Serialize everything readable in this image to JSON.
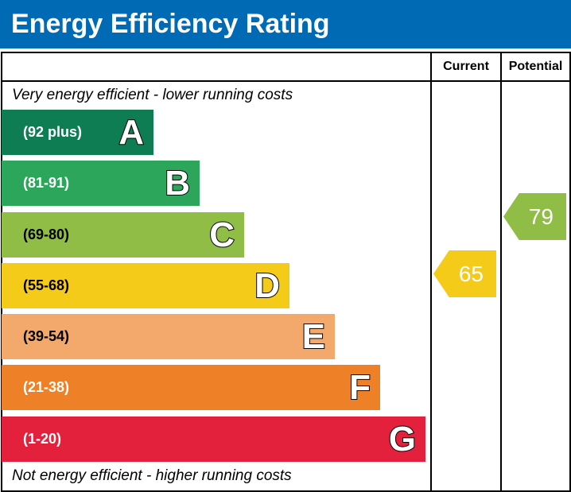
{
  "chart_data": {
    "type": "bar",
    "title": "Energy Efficiency Rating",
    "columns": [
      "Current",
      "Potential"
    ],
    "top_note": "Very energy efficient - lower running costs",
    "bottom_note": "Not energy efficient - higher running costs",
    "bands": [
      {
        "letter": "A",
        "range": "(92 plus)",
        "color": "#0f7d53"
      },
      {
        "letter": "B",
        "range": "(81-91)",
        "color": "#2ca65a"
      },
      {
        "letter": "C",
        "range": "(69-80)",
        "color": "#8fbd45"
      },
      {
        "letter": "D",
        "range": "(55-68)",
        "color": "#f5cb1a"
      },
      {
        "letter": "E",
        "range": "(39-54)",
        "color": "#f2a96b"
      },
      {
        "letter": "F",
        "range": "(21-38)",
        "color": "#ee8127"
      },
      {
        "letter": "G",
        "range": "(1-20)",
        "color": "#e3213c"
      }
    ],
    "current": {
      "value": "65",
      "band": "D",
      "color": "#f5cb1a"
    },
    "potential": {
      "value": "79",
      "band": "C",
      "color": "#8fbd45"
    }
  }
}
